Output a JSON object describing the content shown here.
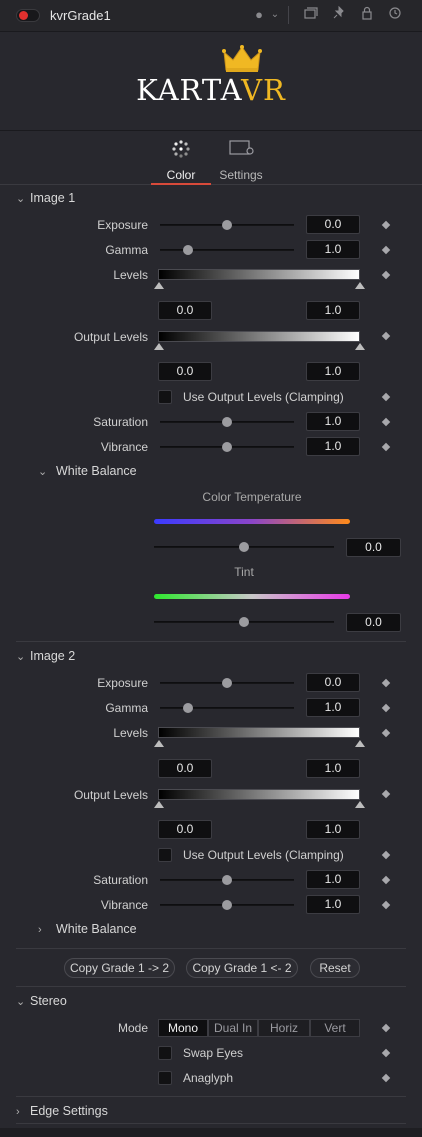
{
  "header": {
    "title": "kvrGrade1",
    "icons": [
      "color-dot-icon",
      "chevron-down-icon",
      "versions-icon",
      "pin-icon",
      "lock-icon",
      "reset-icon"
    ]
  },
  "logo": {
    "text_main": "KARTA",
    "text_accent": "VR",
    "accent_color": "#f0b823"
  },
  "tabs": [
    {
      "label": "Color",
      "icon": "color-icon",
      "active": true
    },
    {
      "label": "Settings",
      "icon": "settings-icon",
      "active": false
    }
  ],
  "image1": {
    "header": "Image 1",
    "exposure": {
      "label": "Exposure",
      "value": "0.0"
    },
    "gamma": {
      "label": "Gamma",
      "value": "1.0"
    },
    "levels": {
      "label": "Levels",
      "low": "0.0",
      "high": "1.0"
    },
    "output_levels": {
      "label": "Output Levels",
      "low": "0.0",
      "high": "1.0"
    },
    "use_output_levels": {
      "label": "Use Output Levels (Clamping)",
      "checked": false
    },
    "saturation": {
      "label": "Saturation",
      "value": "1.0"
    },
    "vibrance": {
      "label": "Vibrance",
      "value": "1.0"
    },
    "white_balance": {
      "header": "White Balance",
      "color_temperature": {
        "label": "Color Temperature",
        "value": "0.0"
      },
      "tint": {
        "label": "Tint",
        "value": "0.0"
      }
    }
  },
  "image2": {
    "header": "Image 2",
    "exposure": {
      "label": "Exposure",
      "value": "0.0"
    },
    "gamma": {
      "label": "Gamma",
      "value": "1.0"
    },
    "levels": {
      "label": "Levels",
      "low": "0.0",
      "high": "1.0"
    },
    "output_levels": {
      "label": "Output Levels",
      "low": "0.0",
      "high": "1.0"
    },
    "use_output_levels": {
      "label": "Use Output Levels (Clamping)",
      "checked": false
    },
    "saturation": {
      "label": "Saturation",
      "value": "1.0"
    },
    "vibrance": {
      "label": "Vibrance",
      "value": "1.0"
    },
    "white_balance": {
      "header": "White Balance"
    }
  },
  "actions": {
    "copy_1_to_2": "Copy Grade 1 -> 2",
    "copy_2_to_1": "Copy Grade 1 <- 2",
    "reset": "Reset"
  },
  "stereo": {
    "header": "Stereo",
    "mode_label": "Mode",
    "modes": [
      "Mono",
      "Dual In",
      "Horiz",
      "Vert"
    ],
    "selected_mode": "Mono",
    "swap_eyes": {
      "label": "Swap Eyes",
      "checked": false
    },
    "anaglyph": {
      "label": "Anaglyph",
      "checked": false
    }
  },
  "edge_settings": {
    "header": "Edge Settings"
  },
  "colors": {
    "accent_red": "#d84a3a",
    "panel_bg": "#28282e",
    "temp_gradient": [
      "#3b3bff",
      "#ff8a1a"
    ],
    "tint_gradient": [
      "#2ee82e",
      "#e83ae8"
    ]
  }
}
